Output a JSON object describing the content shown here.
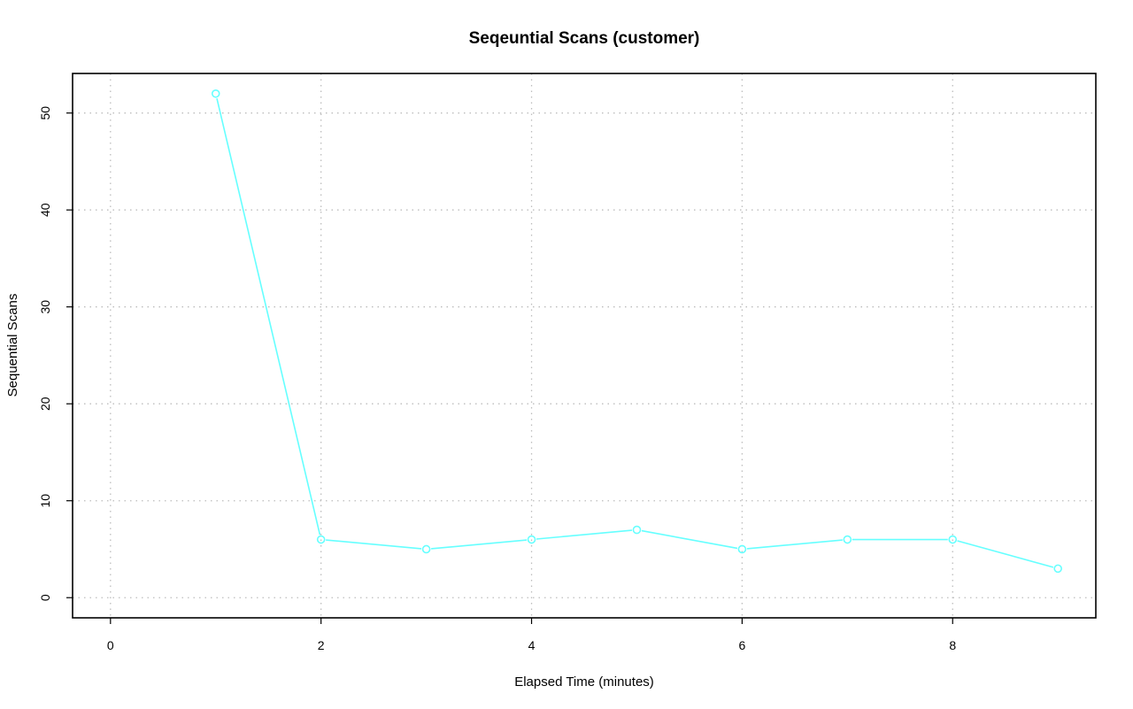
{
  "chart_data": {
    "type": "line",
    "title": "Seqeuntial Scans (customer)",
    "xlabel": "Elapsed Time (minutes)",
    "ylabel": "Sequential Scans",
    "xlim": [
      -0.36,
      9.36
    ],
    "ylim": [
      -2.08,
      54.08
    ],
    "x_ticks": [
      0,
      2,
      4,
      6,
      8
    ],
    "y_ticks": [
      0,
      10,
      20,
      30,
      40,
      50
    ],
    "grid": true,
    "series": [
      {
        "color": "#66FFFF",
        "marker": "open-circle",
        "x": [
          1,
          2,
          3,
          4,
          5,
          6,
          7,
          8,
          9
        ],
        "values": [
          52,
          6,
          5,
          6,
          7,
          5,
          6,
          6,
          3
        ]
      }
    ]
  }
}
